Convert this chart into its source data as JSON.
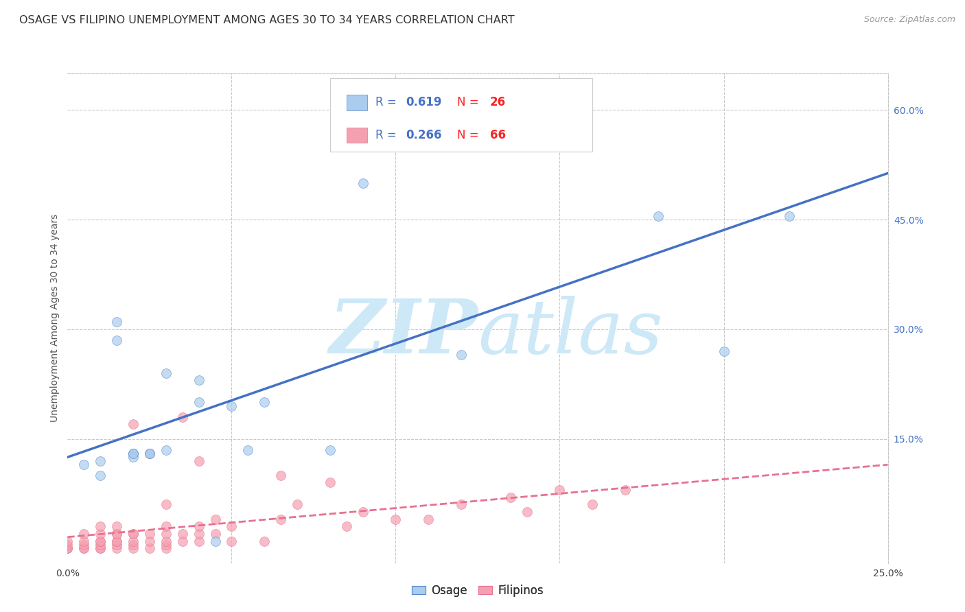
{
  "title": "OSAGE VS FILIPINO UNEMPLOYMENT AMONG AGES 30 TO 34 YEARS CORRELATION CHART",
  "source": "Source: ZipAtlas.com",
  "ylabel": "Unemployment Among Ages 30 to 34 years",
  "xlim": [
    0.0,
    0.25
  ],
  "ylim": [
    -0.02,
    0.65
  ],
  "xticks": [
    0.0,
    0.05,
    0.1,
    0.15,
    0.2,
    0.25
  ],
  "yticks": [
    0.0,
    0.15,
    0.3,
    0.45,
    0.6
  ],
  "ytick_labels": [
    "",
    "15.0%",
    "30.0%",
    "45.0%",
    "60.0%"
  ],
  "xtick_labels": [
    "0.0%",
    "",
    "",
    "",
    "",
    "25.0%"
  ],
  "background_color": "#ffffff",
  "grid_color": "#c8c8c8",
  "watermark_color": "#cde8f7",
  "osage_color": "#aaccee",
  "filipino_color": "#f4a0b0",
  "osage_line_color": "#4472c4",
  "filipino_line_color": "#e87090",
  "osage_R": "0.619",
  "osage_N": "26",
  "filipino_R": "0.266",
  "filipino_N": "66",
  "legend_label1": "Osage",
  "legend_label2": "Filipinos",
  "osage_x": [
    0.005,
    0.01,
    0.01,
    0.015,
    0.015,
    0.02,
    0.02,
    0.02,
    0.02,
    0.025,
    0.025,
    0.03,
    0.03,
    0.04,
    0.04,
    0.05,
    0.045,
    0.055,
    0.06,
    0.08,
    0.09,
    0.15,
    0.18,
    0.2,
    0.22,
    0.12
  ],
  "osage_y": [
    0.115,
    0.1,
    0.12,
    0.31,
    0.285,
    0.13,
    0.13,
    0.125,
    0.13,
    0.13,
    0.13,
    0.135,
    0.24,
    0.23,
    0.2,
    0.195,
    0.01,
    0.135,
    0.2,
    0.135,
    0.5,
    0.565,
    0.455,
    0.27,
    0.455,
    0.265
  ],
  "filipino_x": [
    0.0,
    0.0,
    0.0,
    0.0,
    0.0,
    0.005,
    0.005,
    0.005,
    0.005,
    0.005,
    0.01,
    0.01,
    0.01,
    0.01,
    0.01,
    0.01,
    0.01,
    0.015,
    0.015,
    0.015,
    0.015,
    0.015,
    0.015,
    0.015,
    0.02,
    0.02,
    0.02,
    0.02,
    0.02,
    0.02,
    0.025,
    0.025,
    0.025,
    0.025,
    0.03,
    0.03,
    0.03,
    0.03,
    0.03,
    0.03,
    0.035,
    0.035,
    0.035,
    0.04,
    0.04,
    0.04,
    0.04,
    0.045,
    0.045,
    0.05,
    0.05,
    0.06,
    0.065,
    0.065,
    0.07,
    0.08,
    0.085,
    0.09,
    0.1,
    0.11,
    0.12,
    0.135,
    0.14,
    0.15,
    0.16,
    0.17
  ],
  "filipino_y": [
    0.0,
    0.0,
    0.0,
    0.005,
    0.01,
    0.0,
    0.0,
    0.005,
    0.01,
    0.02,
    0.0,
    0.0,
    0.005,
    0.01,
    0.01,
    0.02,
    0.03,
    0.0,
    0.005,
    0.01,
    0.01,
    0.02,
    0.02,
    0.03,
    0.0,
    0.005,
    0.01,
    0.02,
    0.02,
    0.17,
    0.0,
    0.01,
    0.02,
    0.13,
    0.0,
    0.005,
    0.01,
    0.02,
    0.03,
    0.06,
    0.01,
    0.02,
    0.18,
    0.01,
    0.02,
    0.03,
    0.12,
    0.02,
    0.04,
    0.01,
    0.03,
    0.01,
    0.04,
    0.1,
    0.06,
    0.09,
    0.03,
    0.05,
    0.04,
    0.04,
    0.06,
    0.07,
    0.05,
    0.08,
    0.06,
    0.08
  ],
  "title_fontsize": 11.5,
  "axis_label_fontsize": 10,
  "tick_fontsize": 10,
  "legend_fontsize": 12,
  "source_fontsize": 9
}
